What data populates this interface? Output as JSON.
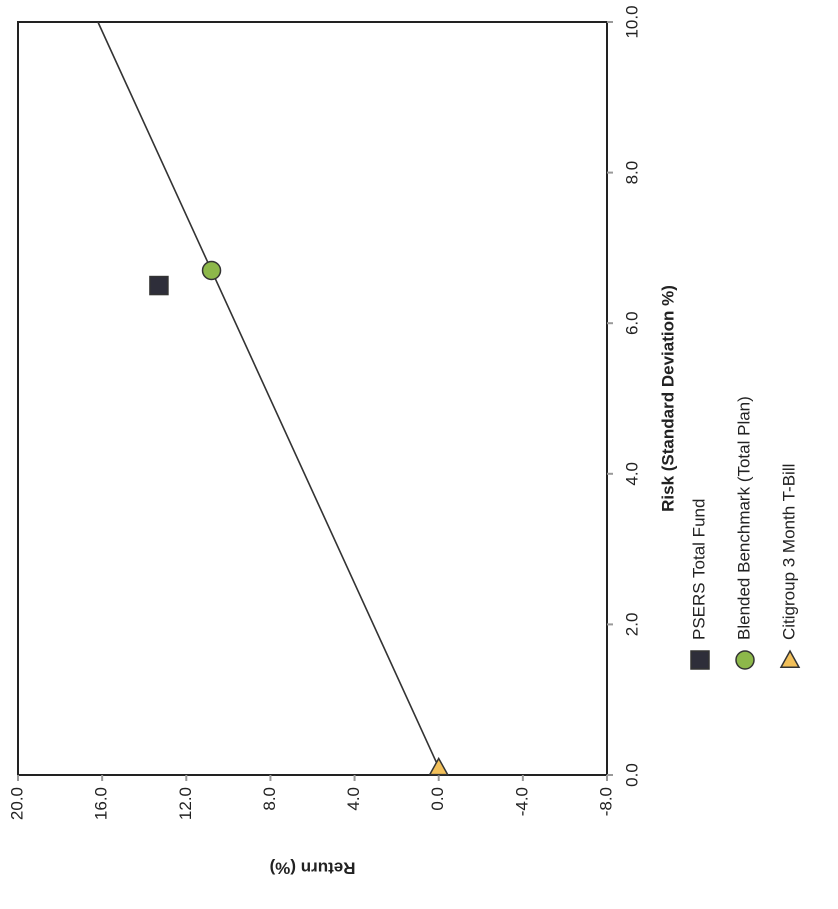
{
  "chart_data": {
    "type": "scatter",
    "x_label": "Risk (Standard Deviation %)",
    "y_label": "Return (%)",
    "xlim": [
      0.0,
      10.0
    ],
    "xticks": [
      {
        "value": 0,
        "label": "0.0"
      },
      {
        "value": 2,
        "label": "2.0"
      },
      {
        "value": 4,
        "label": "4.0"
      },
      {
        "value": 6,
        "label": "6.0"
      },
      {
        "value": 8,
        "label": "8.0"
      },
      {
        "value": 10,
        "label": "10.0"
      }
    ],
    "ylim": [
      -8.0,
      20.0
    ],
    "yticks": [
      {
        "value": -8,
        "label": "-8.0"
      },
      {
        "value": -4,
        "label": "-4.0"
      },
      {
        "value": 0,
        "label": "0.0"
      },
      {
        "value": 4,
        "label": "4.0"
      },
      {
        "value": 8,
        "label": "8.0"
      },
      {
        "value": 12,
        "label": "12.0"
      },
      {
        "value": 16,
        "label": "16.0"
      },
      {
        "value": 20,
        "label": "20.0"
      }
    ],
    "series": [
      {
        "name": "PSERS Total Fund",
        "color": "#2e2e3a",
        "marker": "square",
        "x": [
          6.5
        ],
        "values": [
          13.3
        ]
      },
      {
        "name": "Blended Benchmark (Total Plan)",
        "color": "#8db84a",
        "marker": "circle",
        "x": [
          6.7
        ],
        "values": [
          10.8
        ]
      },
      {
        "name": "Citigroup 3 Month T-Bill",
        "color": "#f2c05a",
        "marker": "triangle",
        "x": [
          0.1
        ],
        "values": [
          0.0
        ]
      }
    ],
    "line": {
      "x": [
        0.1,
        10.0
      ],
      "values": [
        0.0,
        16.2
      ]
    },
    "grid": false
  }
}
